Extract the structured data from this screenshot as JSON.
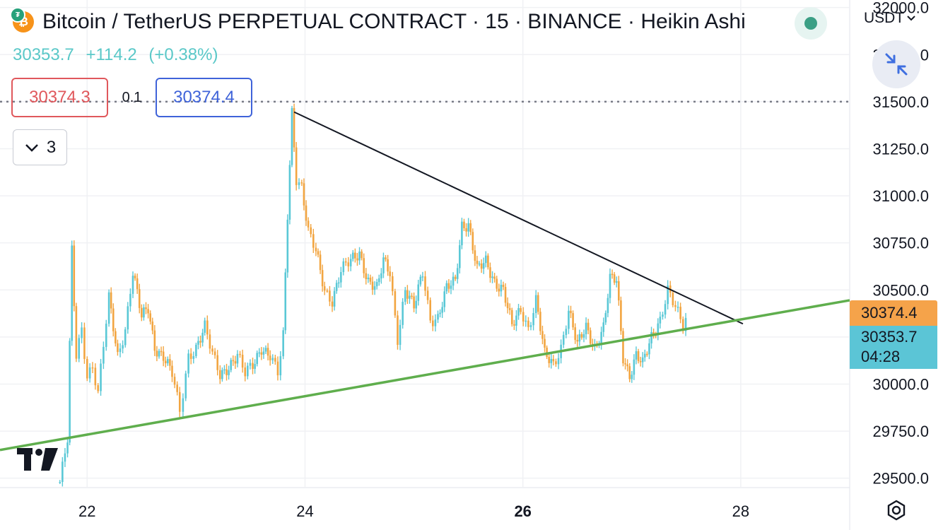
{
  "header": {
    "title": "Bitcoin / TetherUS PERPETUAL CONTRACT · 15 · BINANCE · Heikin Ashi",
    "coin_icon": "bitcoin-tether-icon",
    "coin_symbol": "₿",
    "tether_symbol": "₮"
  },
  "quote": {
    "last": "30353.7",
    "change": "+114.2",
    "change_pct": "(+0.38%)"
  },
  "order": {
    "sell_price": "30374.3",
    "spread": "0.1",
    "buy_price": "30374.4"
  },
  "indicators_toggle": {
    "count": "3",
    "icon": "chevron-down-icon"
  },
  "currency": {
    "label": "USDT"
  },
  "price_tags": {
    "ask": "30374.4",
    "last": "30353.7",
    "countdown": "04:28"
  },
  "colors": {
    "up": "#5ac8d6",
    "down": "#f2a541",
    "support_line": "#5fae4d",
    "resistance_line": "#131722",
    "sell": "#e0585c",
    "buy": "#3f63d9"
  },
  "chart_data": {
    "type": "line",
    "style": "heikin-ashi candles",
    "y_ticks": [
      "29500.0",
      "29750.0",
      "30000.0",
      "30250.0",
      "30500.0",
      "30750.0",
      "31000.0",
      "31250.0",
      "31500.0",
      "31750.0",
      "32000.0"
    ],
    "x_ticks": [
      {
        "label": "22",
        "value": 22,
        "bold": false
      },
      {
        "label": "24",
        "value": 24,
        "bold": false
      },
      {
        "label": "26",
        "value": 26,
        "bold": true
      },
      {
        "label": "28",
        "value": 28,
        "bold": false
      }
    ],
    "xlim": [
      21.2,
      29.0
    ],
    "ylim": [
      29450,
      32040
    ],
    "grid": true,
    "dotted_level": 31500,
    "series": [
      {
        "values_x": [
          21.75,
          21.82,
          21.86,
          21.9,
          21.95,
          22.0,
          22.05,
          22.1,
          22.15,
          22.2,
          22.28,
          22.35,
          22.42,
          22.5,
          22.56,
          22.62,
          22.7,
          22.78,
          22.85,
          22.88,
          22.93,
          23.0,
          23.08,
          23.15,
          23.22,
          23.3,
          23.38,
          23.45,
          23.52,
          23.6,
          23.68,
          23.75,
          23.8,
          23.84,
          23.88,
          23.92,
          23.97,
          24.03,
          24.1,
          24.18,
          24.25,
          24.33,
          24.42,
          24.5,
          24.58,
          24.66,
          24.72,
          24.78,
          24.85,
          24.92,
          25.0,
          25.08,
          25.15,
          25.22,
          25.3,
          25.38,
          25.44,
          25.5,
          25.58,
          25.66,
          25.74,
          25.82,
          25.9,
          25.98,
          26.05,
          26.12,
          26.2,
          26.28,
          26.35,
          26.42,
          26.5,
          26.58,
          26.66,
          26.74,
          26.8,
          26.86,
          26.92,
          26.98,
          27.04,
          27.1,
          27.18,
          27.26,
          27.33,
          27.4,
          27.47,
          27.52
        ],
        "values_y": [
          29480,
          29700,
          30700,
          30150,
          30300,
          30050,
          30100,
          29950,
          30200,
          30450,
          30150,
          30300,
          30600,
          30350,
          30400,
          30200,
          30150,
          30050,
          29850,
          29950,
          30150,
          30200,
          30300,
          30150,
          30050,
          30100,
          30150,
          30050,
          30100,
          30200,
          30150,
          30050,
          30250,
          30900,
          31450,
          31100,
          31050,
          30800,
          30700,
          30500,
          30450,
          30600,
          30650,
          30700,
          30550,
          30500,
          30650,
          30600,
          30250,
          30500,
          30400,
          30600,
          30350,
          30350,
          30500,
          30550,
          30850,
          30850,
          30600,
          30650,
          30550,
          30500,
          30300,
          30400,
          30300,
          30450,
          30150,
          30100,
          30200,
          30400,
          30200,
          30300,
          30200,
          30300,
          30550,
          30550,
          30150,
          30050,
          30150,
          30100,
          30250,
          30350,
          30500,
          30400,
          30300,
          30380
        ]
      }
    ],
    "trendlines": [
      {
        "name": "resistance",
        "x": [
          23.9,
          28.02
        ],
        "y": [
          31445,
          30320
        ]
      },
      {
        "name": "support",
        "x": [
          21.2,
          29.0
        ],
        "y": [
          29650,
          30445
        ]
      }
    ]
  }
}
